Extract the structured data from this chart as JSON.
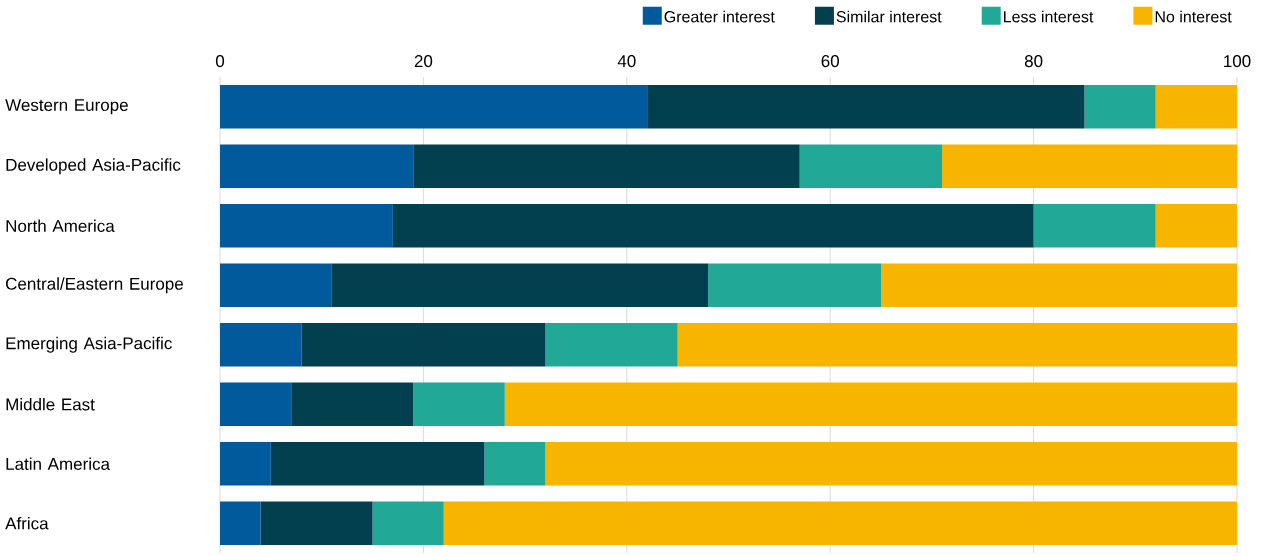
{
  "chart_data": {
    "type": "bar",
    "orientation": "horizontal",
    "stacked": true,
    "categories": [
      "Western Europe",
      "Developed Asia-Pacific",
      "North America",
      "Central/Eastern Europe",
      "Emerging Asia-Pacific",
      "Middle East",
      "Latin America",
      "Africa"
    ],
    "series": [
      {
        "name": "Greater interest",
        "color": "#005a9c",
        "values": [
          42,
          19,
          17,
          11,
          8,
          7,
          5,
          4
        ]
      },
      {
        "name": "Similar interest",
        "color": "#024050",
        "values": [
          43,
          38,
          63,
          37,
          24,
          12,
          21,
          11
        ]
      },
      {
        "name": "Less interest",
        "color": "#21a896",
        "values": [
          7,
          14,
          12,
          17,
          13,
          9,
          6,
          7
        ]
      },
      {
        "name": "No interest",
        "color": "#f7b500",
        "values": [
          8,
          29,
          8,
          35,
          55,
          72,
          68,
          78
        ]
      }
    ],
    "xlim": [
      0,
      100
    ],
    "xticks": [
      0,
      20,
      40,
      60,
      80,
      100
    ],
    "grid": "x",
    "legend": "top right"
  }
}
